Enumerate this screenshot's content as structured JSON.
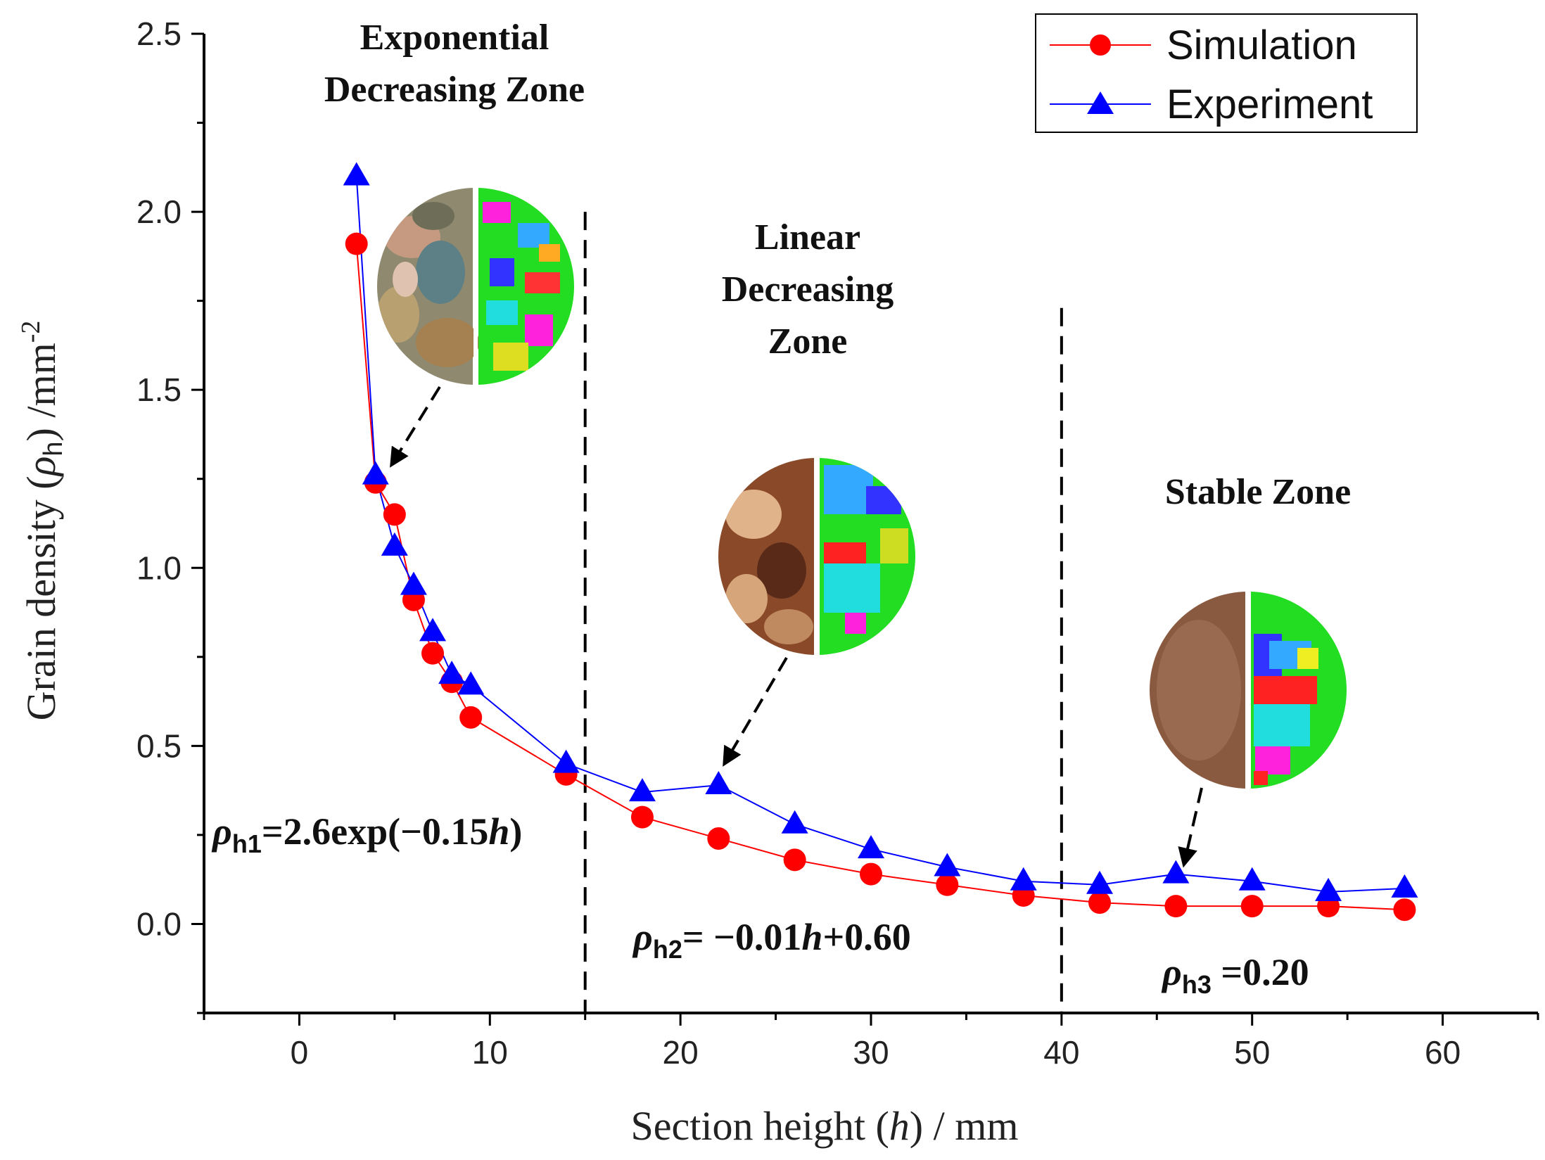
{
  "chart_data": {
    "type": "line",
    "title": "",
    "xlabel": "Section height (h) / mm",
    "ylabel": "Grain density (ρh) /mm-2",
    "xlim": [
      -5,
      65
    ],
    "ylim": [
      -0.25,
      2.5
    ],
    "xticks": [
      0,
      10,
      20,
      30,
      40,
      50,
      60
    ],
    "yticks": [
      0.0,
      0.5,
      1.0,
      1.5,
      2.0,
      2.5
    ],
    "xtick_labels": [
      "0",
      "10",
      "20",
      "30",
      "40",
      "50",
      "60"
    ],
    "ytick_labels": [
      "0.0",
      "0.5",
      "1.0",
      "1.5",
      "2.0",
      "2.5"
    ],
    "legend_position": "top-right",
    "series": [
      {
        "name": "Simulation",
        "color": "#ff0000",
        "marker": "circle",
        "x": [
          3,
          4,
          5,
          6,
          7,
          8,
          9,
          14,
          18,
          22,
          26,
          30,
          34,
          38,
          42,
          46,
          50,
          54,
          58
        ],
        "y": [
          1.91,
          1.24,
          1.15,
          0.91,
          0.76,
          0.68,
          0.58,
          0.42,
          0.3,
          0.24,
          0.18,
          0.14,
          0.11,
          0.08,
          0.06,
          0.05,
          0.05,
          0.05,
          0.04
        ]
      },
      {
        "name": "Experiment",
        "color": "#0000ff",
        "marker": "triangle",
        "x": [
          3,
          4,
          5,
          6,
          7,
          8,
          9,
          14,
          18,
          22,
          26,
          30,
          34,
          38,
          42,
          46,
          50,
          54,
          58
        ],
        "y": [
          2.1,
          1.26,
          1.06,
          0.95,
          0.82,
          0.7,
          0.67,
          0.45,
          0.37,
          0.39,
          0.28,
          0.21,
          0.16,
          0.12,
          0.11,
          0.14,
          0.12,
          0.09,
          0.1
        ]
      }
    ],
    "zone_boundaries": [
      15,
      40
    ],
    "annotations": {
      "zone1": [
        "Exponential",
        "Decreasing Zone"
      ],
      "zone2": [
        "Linear",
        "Decreasing",
        "Zone"
      ],
      "zone3": [
        "Stable Zone"
      ],
      "eq1": {
        "symbol": "ρ",
        "sub": "h1",
        "text": "=2.6exp(−0.15",
        "var": "h",
        "tail": ")"
      },
      "eq2": {
        "symbol": "ρ",
        "sub": "h2",
        "text": "= −0.01",
        "var": "h",
        "tail": "+0.60"
      },
      "eq3": {
        "symbol": "ρ",
        "sub": "h3",
        "text": " =0.20"
      }
    },
    "xlabel_parts": {
      "pre": "Section height (",
      "var": "h",
      "post": ") / mm"
    },
    "ylabel_parts": {
      "pre": "Grain density (",
      "var": "ρ",
      "sub": "h",
      "mid": ") /mm",
      "sup": "-2"
    }
  },
  "colors": {
    "simulation": "#ff0000",
    "experiment": "#0000ff",
    "axis": "#000000"
  }
}
